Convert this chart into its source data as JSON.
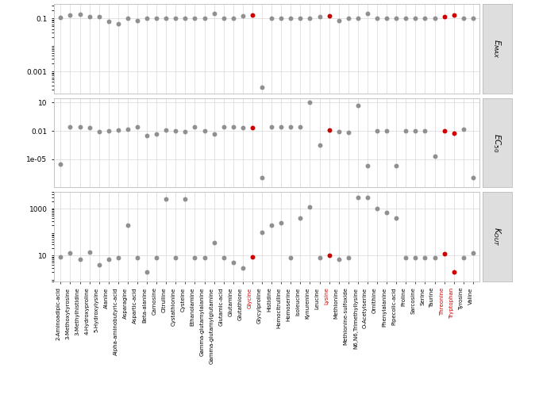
{
  "metabolites": [
    "2-Aminoadipic-acid",
    "3-Methoxytyrosine",
    "3-Methylhistidine",
    "4-Hydroxyproline",
    "5-Hydroxylysine",
    "Alanine",
    "Alpha-aminobutyric-acid",
    "Asparagine",
    "Aspartic-acid",
    "Beta-alanine",
    "Carnosine",
    "Citrulline",
    "Cystathionine",
    "Cysteine",
    "Ethanolamine",
    "Gamma-glutamylalanine",
    "Gamma-glutamylglutamine",
    "Glutamic-acid",
    "Glutamine",
    "Glutathione",
    "Glycine",
    "Glycylproline",
    "Histidine",
    "Homocitrulline",
    "Homoserine",
    "Isoleucine",
    "Kynurenine",
    "Leucine",
    "Lysine",
    "Methionine",
    "Methionine-sulfoxide",
    "N6,N6,Trimethyllysine",
    "O-Acetylserine",
    "Ornithine",
    "Phenylalanine",
    "Pipecolic-acid",
    "Proline",
    "Sarcosine",
    "Serine",
    "Taurine",
    "Threonine",
    "Tryptophan",
    "Tyrosine",
    "Valine"
  ],
  "red_metabolites": [
    "Glycine",
    "Lysine",
    "Threonine",
    "Tryptophan"
  ],
  "Emax": [
    0.11,
    0.13,
    0.145,
    0.12,
    0.12,
    0.075,
    0.065,
    0.1,
    0.085,
    0.105,
    0.105,
    0.1,
    0.105,
    0.105,
    0.105,
    0.105,
    0.155,
    0.105,
    0.105,
    0.125,
    0.13,
    0.00025,
    0.105,
    0.105,
    0.105,
    0.105,
    0.105,
    0.115,
    0.125,
    0.085,
    0.105,
    0.105,
    0.155,
    0.105,
    0.105,
    0.105,
    0.105,
    0.105,
    0.105,
    0.105,
    0.115,
    0.135,
    0.105,
    0.1
  ],
  "EC50": [
    3e-06,
    0.025,
    0.025,
    0.022,
    0.009,
    0.011,
    0.013,
    0.015,
    0.024,
    0.003,
    0.005,
    0.013,
    0.01,
    0.009,
    0.025,
    0.01,
    0.005,
    0.025,
    0.025,
    0.022,
    0.022,
    1e-07,
    0.025,
    0.025,
    0.025,
    0.025,
    10.0,
    0.0003,
    0.012,
    0.008,
    0.007,
    5.0,
    2e-06,
    0.01,
    0.01,
    2e-06,
    0.01,
    0.01,
    0.01,
    2e-05,
    0.011,
    0.006,
    0.015,
    1e-07
  ],
  "Kout": [
    9.0,
    13.0,
    7.0,
    14.0,
    4.0,
    7.0,
    8.0,
    200.0,
    8.0,
    2.0,
    8.0,
    2500.0,
    8.0,
    2500.0,
    8.0,
    8.0,
    35.0,
    8.0,
    5.0,
    3.0,
    9.0,
    100.0,
    200.0,
    250.0,
    8.0,
    400.0,
    1200.0,
    8.0,
    10.0,
    7.0,
    8.0,
    3000.0,
    3000.0,
    1000.0,
    700.0,
    400.0,
    8.0,
    8.0,
    8.0,
    8.0,
    12.0,
    2.0,
    8.0,
    13.0
  ],
  "dot_color_default": "#909090",
  "dot_color_red": "#cc0000",
  "grid_color": "#d8d8d8",
  "panel_bg": "#dedede",
  "panel_labels": [
    "$E_{MAX}$",
    "$EC_{50}$",
    "$K_{OUT}$"
  ],
  "emax_yticks": [
    0.1,
    0.001
  ],
  "emax_ylim": [
    0.00015,
    0.35
  ],
  "ec50_yticks": [
    10,
    0.01,
    1e-05
  ],
  "ec50_ylim": [
    1e-08,
    30
  ],
  "kout_yticks": [
    1000,
    10
  ],
  "kout_ylim": [
    0.8,
    5000
  ]
}
